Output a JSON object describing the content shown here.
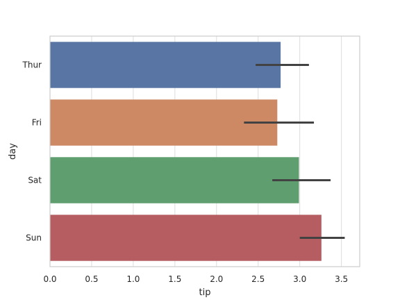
{
  "chart_data": {
    "type": "bar",
    "orientation": "horizontal",
    "title": "",
    "xlabel": "tip",
    "ylabel": "day",
    "categories": [
      "Thur",
      "Fri",
      "Sat",
      "Sun"
    ],
    "values": [
      2.77,
      2.73,
      2.99,
      3.26
    ],
    "error_bars": [
      {
        "low": 2.47,
        "high": 3.11
      },
      {
        "low": 2.33,
        "high": 3.17
      },
      {
        "low": 2.67,
        "high": 3.37
      },
      {
        "low": 3.0,
        "high": 3.54
      }
    ],
    "colors": [
      "#5875a4",
      "#cc8963",
      "#5f9e6e",
      "#b55d60"
    ],
    "error_color": "#424242",
    "xlim": [
      0,
      3.72
    ],
    "xticks": [
      0.0,
      0.5,
      1.0,
      1.5,
      2.0,
      2.5,
      3.0,
      3.5
    ],
    "xtick_labels": [
      "0.0",
      "0.5",
      "1.0",
      "1.5",
      "2.0",
      "2.5",
      "3.0",
      "3.5"
    ],
    "grid": "vertical",
    "grid_color": "#dcdcdc",
    "legend": "none"
  }
}
